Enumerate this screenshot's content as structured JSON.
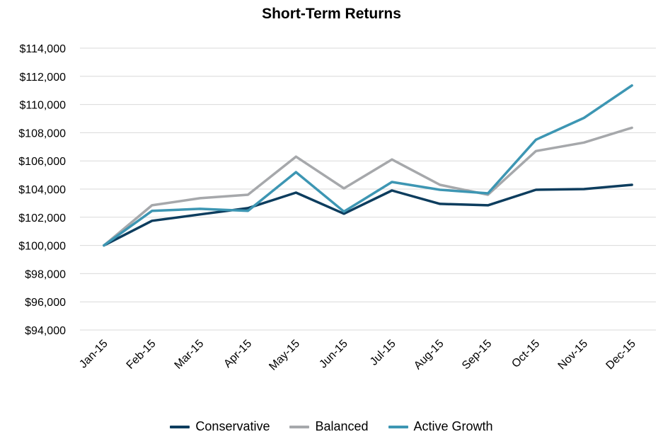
{
  "chart_data": {
    "type": "line",
    "title": "Short-Term Returns",
    "xlabel": "",
    "ylabel": "",
    "categories": [
      "Jan-15",
      "Feb-15",
      "Mar-15",
      "Apr-15",
      "May-15",
      "Jun-15",
      "Jul-15",
      "Aug-15",
      "Sep-15",
      "Oct-15",
      "Nov-15",
      "Dec-15"
    ],
    "ylim": [
      94000,
      114000
    ],
    "yticks": [
      94000,
      96000,
      98000,
      100000,
      102000,
      104000,
      106000,
      108000,
      110000,
      112000,
      114000
    ],
    "ytick_labels": [
      "$94,000",
      "$96,000",
      "$98,000",
      "$100,000",
      "$102,000",
      "$104,000",
      "$106,000",
      "$108,000",
      "$110,000",
      "$112,000",
      "$114,000"
    ],
    "grid": true,
    "legend_position": "bottom",
    "series": [
      {
        "name": "Conservative",
        "color": "#0d3d5e",
        "values": [
          100000,
          101750,
          102200,
          102650,
          103750,
          102250,
          103900,
          102950,
          102850,
          103950,
          104000,
          104300
        ]
      },
      {
        "name": "Balanced",
        "color": "#a6a8ab",
        "values": [
          100000,
          102850,
          103350,
          103600,
          106300,
          104050,
          106100,
          104300,
          103600,
          106700,
          107300,
          108350
        ]
      },
      {
        "name": "Active Growth",
        "color": "#3d96b3",
        "values": [
          100000,
          102450,
          102600,
          102450,
          105200,
          102400,
          104500,
          103950,
          103700,
          107500,
          109050,
          111350
        ]
      }
    ]
  }
}
